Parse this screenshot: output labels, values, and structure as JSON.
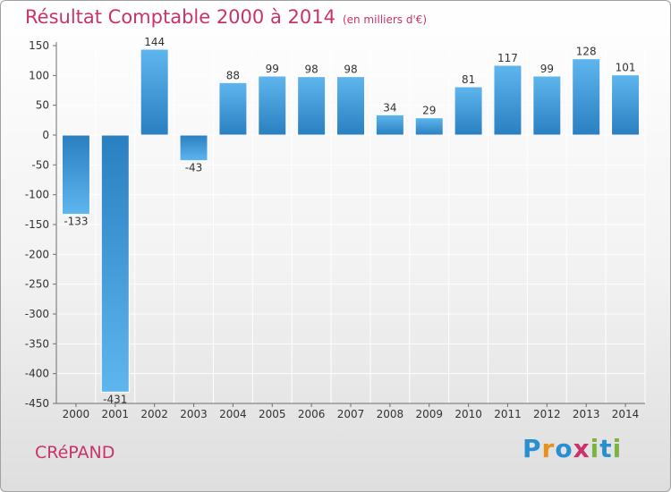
{
  "title": "Résultat Comptable 2000 à 2014",
  "subtitle": "(en milliers d'€)",
  "commune": "CRéPAND",
  "brand": {
    "letters": [
      {
        "ch": "P",
        "color": "#2a8fd0"
      },
      {
        "ch": "r",
        "color": "#e8901e"
      },
      {
        "ch": "o",
        "color": "#2a8fd0"
      },
      {
        "ch": "x",
        "color": "#c8336b"
      },
      {
        "ch": "i",
        "color": "#7cb342"
      },
      {
        "ch": "t",
        "color": "#2a8fd0"
      },
      {
        "ch": "i",
        "color": "#7cb342"
      }
    ]
  },
  "colors": {
    "bar_light": "#5fb6ee",
    "bar_dark": "#2a7fc0",
    "title": "#c8336b",
    "grid": "#ffffff",
    "axis": "#6e6e6e",
    "text": "#333333"
  },
  "chart_data": {
    "type": "bar",
    "categories": [
      "2000",
      "2001",
      "2002",
      "2003",
      "2004",
      "2005",
      "2006",
      "2007",
      "2008",
      "2009",
      "2010",
      "2011",
      "2012",
      "2013",
      "2014"
    ],
    "values": [
      -133,
      -431,
      144,
      -43,
      88,
      99,
      98,
      98,
      34,
      29,
      81,
      117,
      99,
      128,
      101
    ],
    "data_labels": [
      "-133",
      "-431",
      "144",
      "-43",
      "88",
      "99",
      "98",
      "98",
      "34",
      "29",
      "81",
      "117",
      "99",
      "128",
      "101"
    ],
    "ylim": [
      -450,
      150
    ],
    "yticks": [
      150,
      100,
      50,
      0,
      -50,
      -100,
      -150,
      -200,
      -250,
      -300,
      -350,
      -400,
      -450
    ],
    "ytick_labels": [
      "150",
      "100",
      "50",
      "0",
      "-50",
      "-100",
      "-150",
      "-200",
      "-250",
      "-300",
      "-350",
      "-400",
      "-450"
    ],
    "grid": true,
    "legend": "none"
  }
}
